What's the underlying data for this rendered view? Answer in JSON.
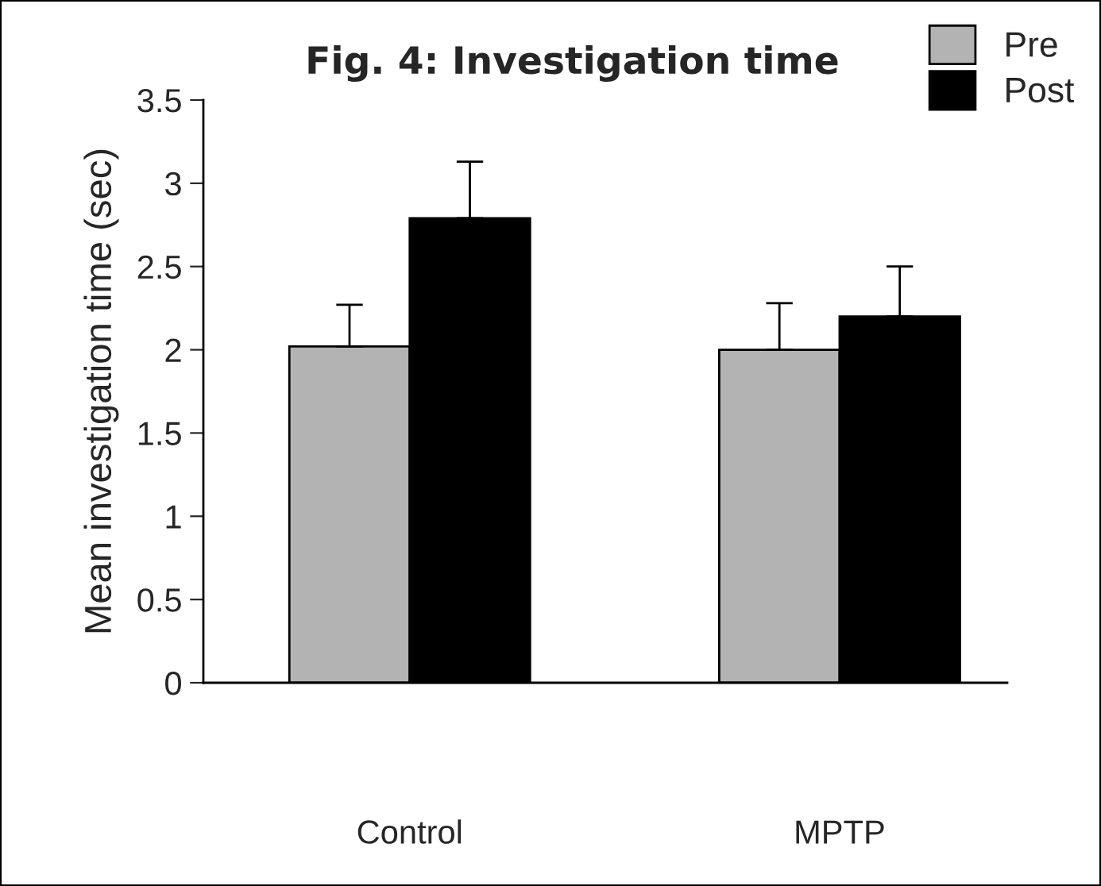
{
  "chart_data": {
    "type": "bar",
    "title": "Fig. 4: Investigation time",
    "ylabel": "Mean investigation time (sec)",
    "categories": [
      "Control",
      "MPTP"
    ],
    "series": [
      {
        "name": "Pre",
        "color": "#b3b3b3",
        "values": [
          2.02,
          2.0
        ],
        "errors": [
          [
            2.02,
            2.27
          ],
          [
            2.0,
            2.28
          ]
        ]
      },
      {
        "name": "Post",
        "color": "#000000",
        "values": [
          2.79,
          2.2
        ],
        "errors": [
          [
            2.79,
            3.13
          ],
          [
            2.2,
            2.5
          ]
        ]
      }
    ],
    "ylim": [
      0,
      3.5
    ],
    "yticks": [
      0,
      0.5,
      1,
      1.5,
      2,
      2.5,
      3,
      3.5
    ],
    "grid": false,
    "legend": "top right"
  }
}
